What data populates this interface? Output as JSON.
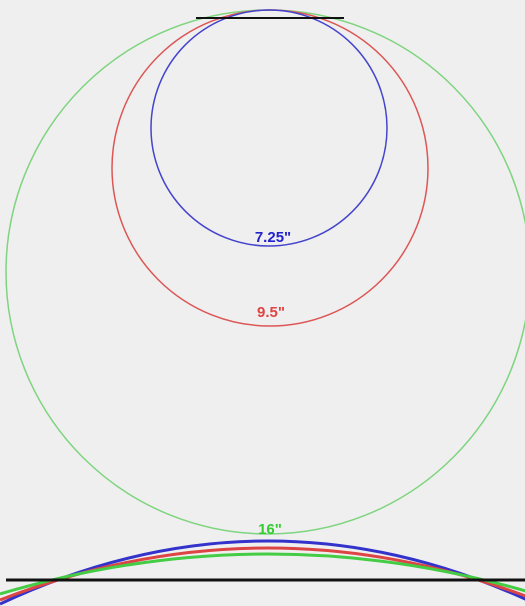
{
  "radii": [
    {
      "label": "7.25\"",
      "color": "#2222cc"
    },
    {
      "label": "9.5\"",
      "color": "#dd4444"
    },
    {
      "label": "16\"",
      "color": "#33cc33"
    }
  ]
}
